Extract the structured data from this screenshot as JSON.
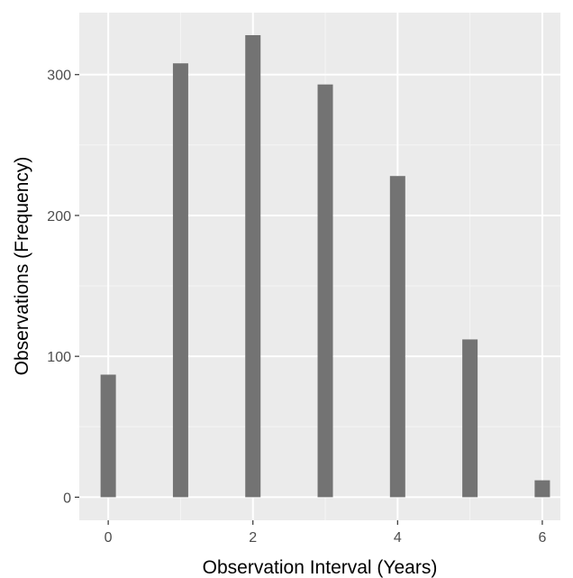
{
  "chart_data": {
    "type": "bar",
    "title": "",
    "xlabel": "Observation Interval (Years)",
    "ylabel": "Observations (Frequency)",
    "x": [
      0,
      1,
      2,
      3,
      4,
      5,
      6
    ],
    "values": [
      87,
      308,
      328,
      293,
      228,
      112,
      12
    ],
    "xlim": [
      -0.4,
      6.25
    ],
    "ylim": [
      -16.4,
      344
    ],
    "x_ticks": [
      0,
      2,
      4,
      6
    ],
    "x_tick_labels": [
      "0",
      "2",
      "4",
      "6"
    ],
    "y_ticks": [
      0,
      100,
      200,
      300
    ],
    "y_tick_labels": [
      "0",
      "100",
      "200",
      "300"
    ],
    "grid": true,
    "legend": "none",
    "colors": {
      "panel_background": "#ebebeb",
      "grid_major": "#ffffff",
      "grid_minor": "#f5f5f5",
      "bar_fill": "#737373",
      "tick_label": "#4d4d4d",
      "axis_title": "#000000"
    }
  }
}
